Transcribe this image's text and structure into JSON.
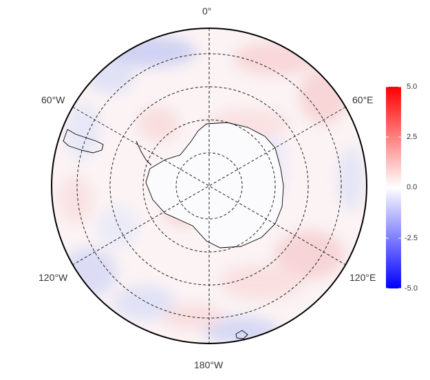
{
  "map": {
    "projection": "south-polar-stereographic",
    "longitude_labels": {
      "top": "0°",
      "upper_left": "60°W",
      "upper_right": "60°E",
      "lower_left": "120°W",
      "lower_right": "120°E",
      "bottom": "180°W"
    },
    "graticule": "dashed"
  },
  "colorbar": {
    "ticks": [
      "5.0",
      "2.5",
      "0.0",
      "-2.5",
      "-5.0"
    ],
    "range": [
      -5.0,
      5.0
    ],
    "colors": {
      "low": "#0000ff",
      "mid": "#ffffff",
      "high": "#ff0000"
    }
  }
}
